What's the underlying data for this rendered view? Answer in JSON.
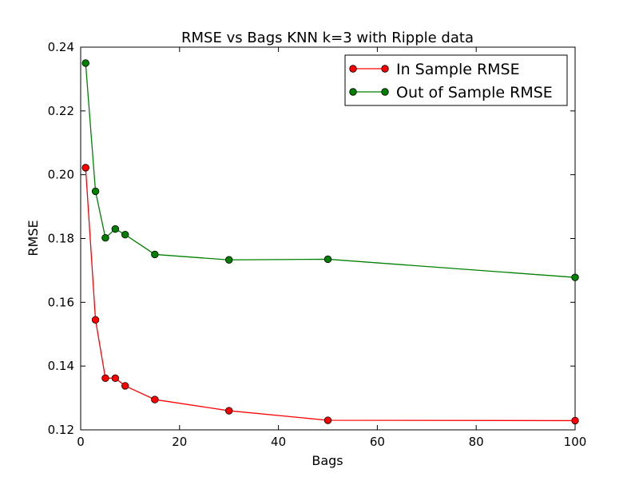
{
  "chart_data": {
    "type": "line",
    "title": "RMSE vs Bags KNN k=3 with Ripple data",
    "xlabel": "Bags",
    "ylabel": "RMSE",
    "xlim": [
      0,
      100
    ],
    "ylim": [
      0.12,
      0.24
    ],
    "xticks": [
      "0",
      "20",
      "40",
      "60",
      "80",
      "100"
    ],
    "yticks": [
      "0.12",
      "0.14",
      "0.16",
      "0.18",
      "0.20",
      "0.22",
      "0.24"
    ],
    "grid": false,
    "legend": "top-right",
    "x": [
      1,
      3,
      5,
      7,
      9,
      15,
      30,
      50,
      100
    ],
    "series": [
      {
        "name": "In Sample RMSE",
        "color": "#ff0000",
        "values": [
          0.2022,
          0.1545,
          0.1362,
          0.1362,
          0.1338,
          0.1295,
          0.126,
          0.123,
          0.1229
        ]
      },
      {
        "name": "Out of Sample RMSE",
        "color": "#008000",
        "values": [
          0.235,
          0.1948,
          0.1802,
          0.183,
          0.1812,
          0.175,
          0.1733,
          0.1735,
          0.1678
        ]
      }
    ]
  }
}
